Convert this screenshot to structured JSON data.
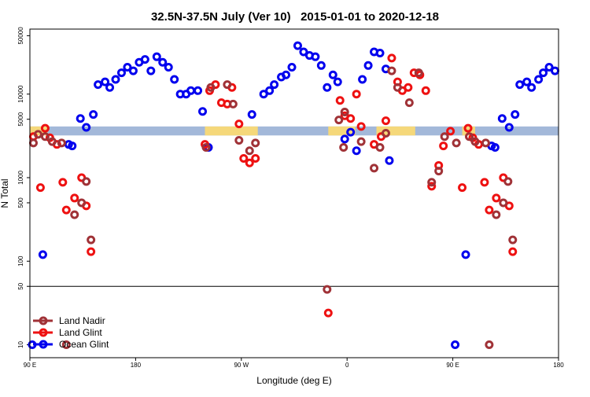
{
  "chart_data": {
    "type": "scatter",
    "title": "32.5N-37.5N July (Ver 10)   2015-01-01 to 2020-12-18",
    "xlabel": "Longitude (deg E)",
    "ylabel": "N Total",
    "xlim": [
      90,
      540
    ],
    "ylim": [
      7,
      60000
    ],
    "log_y": true,
    "legend": "lower left",
    "hline": 50,
    "xticks": [
      {
        "value": 90,
        "label": "90 E"
      },
      {
        "value": 180,
        "label": "180"
      },
      {
        "value": 270,
        "label": "90 W"
      },
      {
        "value": 360,
        "label": "0"
      },
      {
        "value": 450,
        "label": "90 E"
      },
      {
        "value": 540,
        "label": "180"
      }
    ],
    "yticks": [
      10,
      50,
      100,
      500,
      1000,
      5000,
      10000,
      50000
    ],
    "bands": [
      {
        "color": "#a3b8d9",
        "x": [
          90,
          540
        ],
        "y": [
          3200,
          4100
        ]
      },
      {
        "color": "#f5d87a",
        "x": [
          90,
          105
        ],
        "y": [
          3200,
          4100
        ]
      },
      {
        "color": "#f5d87a",
        "x": [
          239,
          284
        ],
        "y": [
          3200,
          4100
        ]
      },
      {
        "color": "#f5d87a",
        "x": [
          344,
          367
        ],
        "y": [
          3200,
          4100
        ]
      },
      {
        "color": "#f5d87a",
        "x": [
          385,
          418
        ],
        "y": [
          3200,
          4100
        ]
      },
      {
        "color": "#f5d87a",
        "x": [
          458,
          469
        ],
        "y": [
          3200,
          4100
        ]
      }
    ],
    "series": [
      {
        "name": "Land Nadir",
        "color": "#a03237",
        "x": [
          93,
          97,
          103,
          109,
          117,
          128,
          134,
          138,
          142,
          240,
          244,
          258,
          263,
          268,
          277,
          282,
          343,
          353,
          358,
          357,
          372,
          383,
          388,
          393,
          398,
          403,
          413,
          421,
          432,
          438,
          443,
          453,
          464,
          469,
          478,
          487,
          493,
          497,
          501,
          481,
          121
        ],
        "values": [
          2600,
          3300,
          3100,
          2700,
          2600,
          360,
          500,
          900,
          180,
          2300,
          12000,
          13000,
          7600,
          2800,
          2100,
          2600,
          46,
          4900,
          6100,
          2300,
          2700,
          1300,
          2300,
          3400,
          19000,
          12000,
          7900,
          18000,
          880,
          1200,
          3100,
          2600,
          3100,
          2700,
          2600,
          360,
          500,
          900,
          180,
          10,
          10
        ]
      },
      {
        "name": "Land Glint",
        "color": "#ee1111",
        "x": [
          93,
          103,
          107,
          113,
          99,
          118,
          121,
          128,
          134,
          138,
          142,
          239,
          243,
          248,
          253,
          258,
          262,
          268,
          272,
          277,
          282,
          344,
          354,
          358,
          363,
          368,
          372,
          383,
          389,
          393,
          398,
          403,
          407,
          412,
          417,
          422,
          427,
          432,
          438,
          442,
          448,
          458,
          463,
          467,
          472,
          477,
          481,
          487,
          493,
          498,
          501
        ],
        "values": [
          3100,
          3900,
          3000,
          2500,
          760,
          880,
          410,
          570,
          1000,
          460,
          130,
          2500,
          11000,
          13000,
          7900,
          7600,
          12000,
          4400,
          1700,
          1500,
          1700,
          24,
          8400,
          5500,
          5100,
          10000,
          4100,
          2500,
          3100,
          4800,
          27000,
          14000,
          11000,
          12000,
          18000,
          17000,
          11000,
          790,
          1400,
          2400,
          3600,
          760,
          3900,
          3000,
          2500,
          880,
          410,
          570,
          1000,
          460,
          130
        ]
      },
      {
        "name": "Ocean Glint",
        "color": "#0000ee",
        "x": [
          101,
          133,
          138,
          144,
          148,
          154,
          158,
          163,
          168,
          173,
          178,
          183,
          188,
          193,
          198,
          203,
          208,
          213,
          218,
          223,
          227,
          233,
          237,
          242,
          126,
          123,
          279,
          289,
          294,
          298,
          304,
          308,
          313,
          318,
          323,
          328,
          333,
          338,
          343,
          348,
          352,
          358,
          363,
          368,
          373,
          378,
          383,
          388,
          393,
          396,
          461,
          483,
          486,
          492,
          498,
          503,
          507,
          513,
          517,
          523,
          527,
          532,
          537,
          92,
          452
        ],
        "values": [
          120,
          5100,
          4000,
          5700,
          13000,
          14000,
          12000,
          15000,
          18000,
          21000,
          19000,
          24000,
          26000,
          19000,
          28000,
          24000,
          21000,
          15000,
          10000,
          10000,
          11000,
          11000,
          6200,
          2300,
          2400,
          2500,
          5700,
          10000,
          11000,
          13000,
          16000,
          17000,
          21000,
          38000,
          32000,
          29000,
          28000,
          22000,
          12000,
          17000,
          14000,
          2900,
          3500,
          2100,
          15000,
          22000,
          32000,
          31000,
          20000,
          1600,
          120,
          2400,
          2300,
          5100,
          4000,
          5700,
          13000,
          14000,
          12000,
          15000,
          18000,
          21000,
          19000,
          10,
          10
        ]
      }
    ]
  }
}
